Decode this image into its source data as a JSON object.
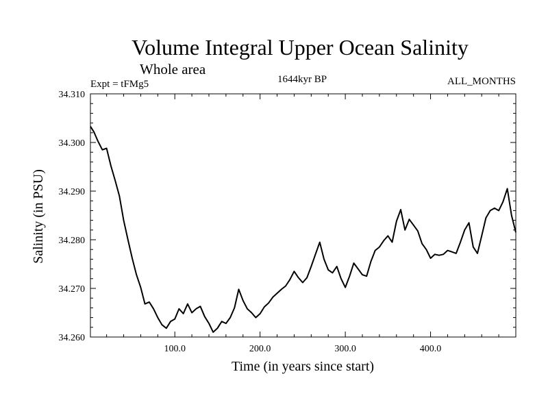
{
  "chart_data": {
    "type": "line",
    "title": "Volume Integral Upper Ocean Salinity",
    "subtitle": "Whole area",
    "left_label": "Expt = tFMg5",
    "center_label": "1644kyr BP",
    "right_label": "ALL_MONTHS",
    "xlabel": "Time (in years since start)",
    "ylabel": "Salinity (in PSU)",
    "xlim": [
      1,
      500
    ],
    "ylim": [
      34.26,
      34.31
    ],
    "x_ticks": [
      100,
      200,
      300,
      400
    ],
    "x_tick_labels": [
      "100.0",
      "200.0",
      "300.0",
      "400.0"
    ],
    "y_ticks": [
      34.26,
      34.27,
      34.28,
      34.29,
      34.3,
      34.31
    ],
    "y_tick_labels": [
      "34.260",
      "34.270",
      "34.280",
      "34.290",
      "34.300",
      "34.310"
    ],
    "grid": false,
    "series": [
      {
        "name": "salinity",
        "color": "#000000",
        "x": [
          1,
          5,
          10,
          15,
          20,
          25,
          30,
          35,
          40,
          45,
          50,
          55,
          60,
          65,
          70,
          75,
          80,
          85,
          90,
          95,
          100,
          105,
          110,
          115,
          120,
          125,
          130,
          135,
          140,
          145,
          150,
          155,
          160,
          165,
          170,
          175,
          180,
          185,
          190,
          195,
          200,
          205,
          210,
          215,
          220,
          225,
          230,
          235,
          240,
          245,
          250,
          255,
          260,
          265,
          270,
          275,
          280,
          285,
          290,
          295,
          300,
          305,
          310,
          315,
          320,
          325,
          330,
          335,
          340,
          345,
          350,
          355,
          360,
          365,
          370,
          375,
          380,
          385,
          390,
          395,
          400,
          405,
          410,
          415,
          420,
          425,
          430,
          435,
          440,
          445,
          450,
          455,
          460,
          465,
          470,
          475,
          480,
          485,
          490,
          495,
          500
        ],
        "values": [
          34.3033,
          34.3022,
          34.3002,
          34.2985,
          34.2988,
          34.2952,
          34.2922,
          34.289,
          34.284,
          34.28,
          34.2762,
          34.2728,
          34.2702,
          34.2668,
          34.2672,
          34.2658,
          34.264,
          34.2625,
          34.2618,
          34.2632,
          34.2637,
          34.2658,
          34.2648,
          34.2668,
          34.265,
          34.2658,
          34.2663,
          34.2642,
          34.2628,
          34.261,
          34.2618,
          34.2632,
          34.2628,
          34.264,
          34.266,
          34.2698,
          34.2675,
          34.2658,
          34.265,
          34.264,
          34.2648,
          34.2662,
          34.267,
          34.2682,
          34.269,
          34.2698,
          34.2705,
          34.2718,
          34.2735,
          34.2722,
          34.2712,
          34.2722,
          34.2745,
          34.277,
          34.2795,
          34.276,
          34.2738,
          34.2732,
          34.2745,
          34.272,
          34.2702,
          34.2725,
          34.2752,
          34.274,
          34.2728,
          34.2725,
          34.2755,
          34.2778,
          34.2785,
          34.2798,
          34.2808,
          34.2795,
          34.2838,
          34.2862,
          34.282,
          34.2842,
          34.283,
          34.2818,
          34.2792,
          34.278,
          34.2762,
          34.277,
          34.2768,
          34.277,
          34.2778,
          34.2775,
          34.2772,
          34.2795,
          34.282,
          34.2835,
          34.2785,
          34.2772,
          34.2808,
          34.2845,
          34.286,
          34.2865,
          34.286,
          34.2878,
          34.2905,
          34.285,
          34.2815
        ]
      }
    ]
  }
}
